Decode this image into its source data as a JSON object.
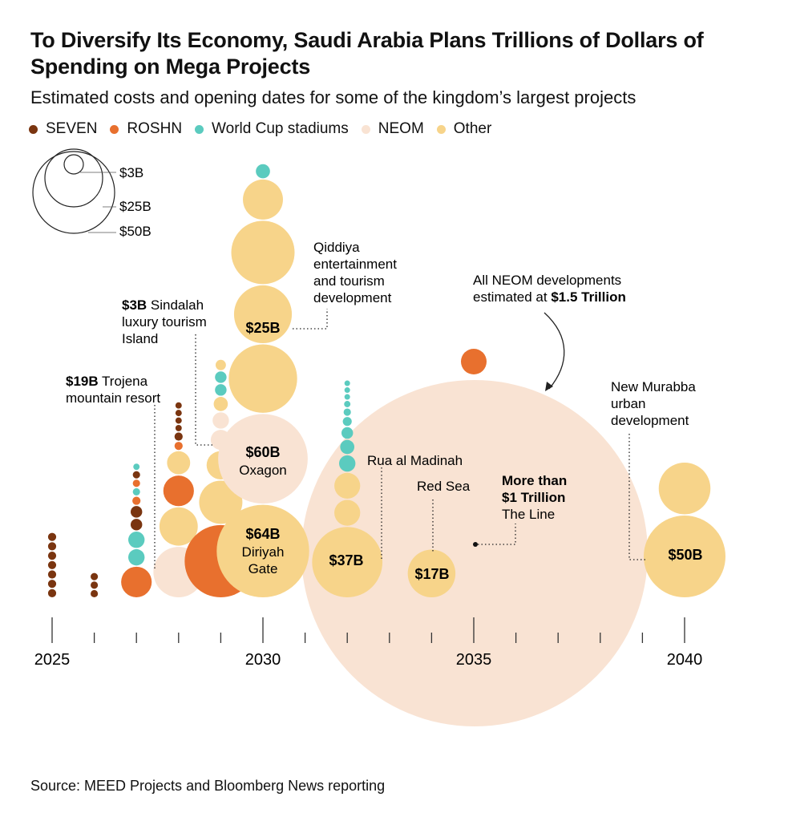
{
  "title": "To Diversify Its Economy, Saudi Arabia Plans Trillions of Dollars of Spending on Mega Projects",
  "subtitle": "Estimated costs and opening dates for some of the kingdom’s largest projects",
  "source": "Source: MEED Projects and Bloomberg News reporting",
  "colors": {
    "SEVEN": "#7a3510",
    "ROSHN": "#e8702e",
    "World Cup stadiums": "#5bcbbf",
    "NEOM": "#f9e3d3",
    "Other": "#f7d48a"
  },
  "legend": [
    {
      "name": "SEVEN",
      "color": "#7a3510"
    },
    {
      "name": "ROSHN",
      "color": "#e8702e"
    },
    {
      "name": "World Cup stadiums",
      "color": "#5bcbbf"
    },
    {
      "name": "NEOM",
      "color": "#f9e3d3"
    },
    {
      "name": "Other",
      "color": "#f7d48a"
    }
  ],
  "size_legend": [
    "$3B",
    "$25B",
    "$50B"
  ],
  "chart_data": {
    "type": "scatter",
    "x_axis": {
      "min": 2025,
      "max": 2040,
      "tick_labels": [
        "2025",
        "2030",
        "2035",
        "2040"
      ]
    },
    "stacks": [
      {
        "year": 2025,
        "items": [
          {
            "category": "SEVEN",
            "cost": 0.5
          },
          {
            "category": "SEVEN",
            "cost": 0.5
          },
          {
            "category": "SEVEN",
            "cost": 0.5
          },
          {
            "category": "SEVEN",
            "cost": 0.5
          },
          {
            "category": "SEVEN",
            "cost": 0.5
          },
          {
            "category": "SEVEN",
            "cost": 0.5
          },
          {
            "category": "SEVEN",
            "cost": 0.5
          }
        ]
      },
      {
        "year": 2026,
        "items": [
          {
            "category": "SEVEN",
            "cost": 0.4
          },
          {
            "category": "SEVEN",
            "cost": 0.4
          },
          {
            "category": "SEVEN",
            "cost": 0.4
          }
        ]
      },
      {
        "year": 2027,
        "items": [
          {
            "category": "ROSHN",
            "cost": 7
          },
          {
            "category": "World Cup stadiums",
            "cost": 2
          },
          {
            "category": "World Cup stadiums",
            "cost": 2
          },
          {
            "category": "SEVEN",
            "cost": 1
          },
          {
            "category": "SEVEN",
            "cost": 1
          },
          {
            "category": "ROSHN",
            "cost": 0.5
          },
          {
            "category": "World Cup stadiums",
            "cost": 0.4
          },
          {
            "category": "ROSHN",
            "cost": 0.4
          },
          {
            "category": "SEVEN",
            "cost": 0.4
          },
          {
            "category": "World Cup stadiums",
            "cost": 0.3
          }
        ]
      },
      {
        "year": 2028,
        "items": [
          {
            "category": "NEOM",
            "cost": 19,
            "value_label": "$19B",
            "label": "Trojena mountain resort"
          },
          {
            "category": "Other",
            "cost": 11
          },
          {
            "category": "ROSHN",
            "cost": 7
          },
          {
            "category": "Other",
            "cost": 4
          },
          {
            "category": "ROSHN",
            "cost": 0.5
          },
          {
            "category": "SEVEN",
            "cost": 0.5
          },
          {
            "category": "SEVEN",
            "cost": 0.3
          },
          {
            "category": "SEVEN",
            "cost": 0.3
          },
          {
            "category": "SEVEN",
            "cost": 0.3
          },
          {
            "category": "SEVEN",
            "cost": 0.3
          }
        ]
      },
      {
        "year": 2029,
        "items": [
          {
            "category": "ROSHN",
            "cost": 39
          },
          {
            "category": "Other",
            "cost": 14
          },
          {
            "category": "Other",
            "cost": 6
          },
          {
            "category": "NEOM",
            "cost": 3,
            "value_label": "$3B",
            "label": "Sindalah luxury tourism Island"
          },
          {
            "category": "NEOM",
            "cost": 2
          },
          {
            "category": "Other",
            "cost": 1.5
          },
          {
            "category": "World Cup stadiums",
            "cost": 1
          },
          {
            "category": "World Cup stadiums",
            "cost": 1
          },
          {
            "category": "Other",
            "cost": 0.8
          }
        ]
      },
      {
        "year": 2030,
        "items": [
          {
            "category": "Other",
            "cost": 64,
            "value_label": "$64B",
            "label": "Diriyah Gate"
          },
          {
            "category": "NEOM",
            "cost": 60,
            "value_label": "$60B",
            "label": "Oxagon"
          },
          {
            "category": "Other",
            "cost": 35
          },
          {
            "category": "Other",
            "cost": 25,
            "value_label": "$25B",
            "label": "Qiddiya entertainment and tourism development"
          },
          {
            "category": "Other",
            "cost": 30
          },
          {
            "category": "Other",
            "cost": 12
          },
          {
            "category": "World Cup stadiums",
            "cost": 1.5
          }
        ]
      },
      {
        "year": 2032,
        "items": [
          {
            "category": "Other",
            "cost": 37,
            "value_label": "$37B",
            "label": "Rua al Madinah"
          },
          {
            "category": "Other",
            "cost": 5
          },
          {
            "category": "Other",
            "cost": 5
          },
          {
            "category": "World Cup stadiums",
            "cost": 2
          },
          {
            "category": "World Cup stadiums",
            "cost": 1.5
          },
          {
            "category": "World Cup stadiums",
            "cost": 1
          },
          {
            "category": "World Cup stadiums",
            "cost": 0.6
          },
          {
            "category": "World Cup stadiums",
            "cost": 0.4
          },
          {
            "category": "World Cup stadiums",
            "cost": 0.3
          },
          {
            "category": "World Cup stadiums",
            "cost": 0.2
          },
          {
            "category": "World Cup stadiums",
            "cost": 0.15
          },
          {
            "category": "World Cup stadiums",
            "cost": 0.1
          }
        ]
      },
      {
        "year": 2034,
        "items": [
          {
            "category": "Other",
            "cost": 17,
            "value_label": "$17B",
            "label": "Red Sea"
          }
        ]
      },
      {
        "year": 2035,
        "items": [
          {
            "category": "NEOM",
            "cost": 1000,
            "value_label": "More than $1 Trillion",
            "label": "The Line"
          },
          {
            "category": "ROSHN",
            "cost": 5
          }
        ]
      },
      {
        "year": 2040,
        "items": [
          {
            "category": "Other",
            "cost": 50,
            "value_label": "$50B",
            "label": "New Murabba urban development"
          },
          {
            "category": "Other",
            "cost": 20
          }
        ]
      }
    ],
    "annotations": [
      {
        "name": "neom-total",
        "prefix": "All NEOM developments",
        "text_plain": "estimated at ",
        "text_bold": "$1.5 Trillion"
      }
    ]
  }
}
